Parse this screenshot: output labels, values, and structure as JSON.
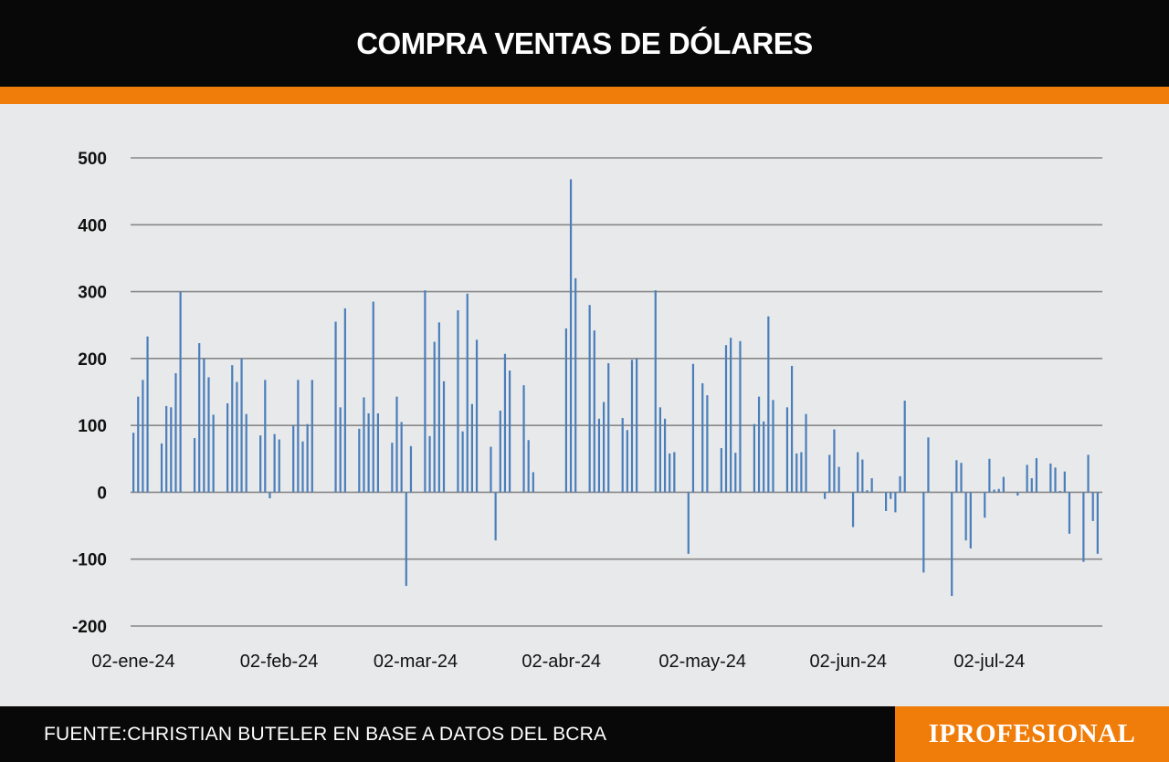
{
  "header": {
    "title": "COMPRA VENTAS DE DÓLARES"
  },
  "footer": {
    "source": "FUENTE:CHRISTIAN BUTELER EN BASE A DATOS DEL BCRA",
    "logo": "IPROFESIONAL"
  },
  "colors": {
    "bar": "#4a7ebb",
    "accent": "#f07d0a",
    "header_bg": "#080808",
    "grid": "#888888"
  },
  "chart_data": {
    "type": "bar",
    "title": "COMPRA VENTAS DE DÓLARES",
    "xlabel": "",
    "ylabel": "",
    "ylim": [
      -200,
      500
    ],
    "yticks": [
      500,
      400,
      300,
      200,
      100,
      0,
      -100,
      -200
    ],
    "xticks": [
      "02-ene-24",
      "02-feb-24",
      "02-mar-24",
      "02-abr-24",
      "02-may-24",
      "02-jun-24",
      "02-jul-24"
    ],
    "grid": true,
    "legend": "none",
    "series": [
      {
        "values": [
          {
            "x": "2024-01-02",
            "y": 89
          },
          {
            "x": "2024-01-03",
            "y": 143
          },
          {
            "x": "2024-01-04",
            "y": 168
          },
          {
            "x": "2024-01-05",
            "y": 233
          },
          {
            "x": "2024-01-08",
            "y": 73
          },
          {
            "x": "2024-01-09",
            "y": 129
          },
          {
            "x": "2024-01-10",
            "y": 127
          },
          {
            "x": "2024-01-11",
            "y": 178
          },
          {
            "x": "2024-01-12",
            "y": 300
          },
          {
            "x": "2024-01-15",
            "y": 81
          },
          {
            "x": "2024-01-16",
            "y": 223
          },
          {
            "x": "2024-01-17",
            "y": 200
          },
          {
            "x": "2024-01-18",
            "y": 172
          },
          {
            "x": "2024-01-19",
            "y": 116
          },
          {
            "x": "2024-01-22",
            "y": 133
          },
          {
            "x": "2024-01-23",
            "y": 190
          },
          {
            "x": "2024-01-24",
            "y": 165
          },
          {
            "x": "2024-01-25",
            "y": 200
          },
          {
            "x": "2024-01-26",
            "y": 117
          },
          {
            "x": "2024-01-29",
            "y": 85
          },
          {
            "x": "2024-01-30",
            "y": 168
          },
          {
            "x": "2024-01-31",
            "y": -9
          },
          {
            "x": "2024-02-01",
            "y": 87
          },
          {
            "x": "2024-02-02",
            "y": 79
          },
          {
            "x": "2024-02-05",
            "y": 100
          },
          {
            "x": "2024-02-06",
            "y": 168
          },
          {
            "x": "2024-02-07",
            "y": 76
          },
          {
            "x": "2024-02-08",
            "y": 102
          },
          {
            "x": "2024-02-09",
            "y": 168
          },
          {
            "x": "2024-02-14",
            "y": 255
          },
          {
            "x": "2024-02-15",
            "y": 127
          },
          {
            "x": "2024-02-16",
            "y": 275
          },
          {
            "x": "2024-02-19",
            "y": 95
          },
          {
            "x": "2024-02-20",
            "y": 142
          },
          {
            "x": "2024-02-21",
            "y": 118
          },
          {
            "x": "2024-02-22",
            "y": 285
          },
          {
            "x": "2024-02-23",
            "y": 118
          },
          {
            "x": "2024-02-26",
            "y": 74
          },
          {
            "x": "2024-02-27",
            "y": 143
          },
          {
            "x": "2024-02-28",
            "y": 105
          },
          {
            "x": "2024-02-29",
            "y": -140
          },
          {
            "x": "2024-03-01",
            "y": 69
          },
          {
            "x": "2024-03-04",
            "y": 302
          },
          {
            "x": "2024-03-05",
            "y": 84
          },
          {
            "x": "2024-03-06",
            "y": 225
          },
          {
            "x": "2024-03-07",
            "y": 254
          },
          {
            "x": "2024-03-08",
            "y": 166
          },
          {
            "x": "2024-03-11",
            "y": 272
          },
          {
            "x": "2024-03-12",
            "y": 91
          },
          {
            "x": "2024-03-13",
            "y": 297
          },
          {
            "x": "2024-03-14",
            "y": 132
          },
          {
            "x": "2024-03-15",
            "y": 228
          },
          {
            "x": "2024-03-18",
            "y": 68
          },
          {
            "x": "2024-03-19",
            "y": -72
          },
          {
            "x": "2024-03-20",
            "y": 122
          },
          {
            "x": "2024-03-21",
            "y": 207
          },
          {
            "x": "2024-03-22",
            "y": 182
          },
          {
            "x": "2024-03-25",
            "y": 160
          },
          {
            "x": "2024-03-26",
            "y": 78
          },
          {
            "x": "2024-03-27",
            "y": 30
          },
          {
            "x": "2024-04-03",
            "y": 245
          },
          {
            "x": "2024-04-04",
            "y": 468
          },
          {
            "x": "2024-04-05",
            "y": 320
          },
          {
            "x": "2024-04-08",
            "y": 280
          },
          {
            "x": "2024-04-09",
            "y": 242
          },
          {
            "x": "2024-04-10",
            "y": 110
          },
          {
            "x": "2024-04-11",
            "y": 135
          },
          {
            "x": "2024-04-12",
            "y": 193
          },
          {
            "x": "2024-04-15",
            "y": 111
          },
          {
            "x": "2024-04-16",
            "y": 93
          },
          {
            "x": "2024-04-17",
            "y": 198
          },
          {
            "x": "2024-04-18",
            "y": 200
          },
          {
            "x": "2024-04-22",
            "y": 302
          },
          {
            "x": "2024-04-23",
            "y": 127
          },
          {
            "x": "2024-04-24",
            "y": 110
          },
          {
            "x": "2024-04-25",
            "y": 58
          },
          {
            "x": "2024-04-26",
            "y": 60
          },
          {
            "x": "2024-04-29",
            "y": -92
          },
          {
            "x": "2024-04-30",
            "y": 192
          },
          {
            "x": "2024-05-02",
            "y": 163
          },
          {
            "x": "2024-05-03",
            "y": 145
          },
          {
            "x": "2024-05-06",
            "y": 66
          },
          {
            "x": "2024-05-07",
            "y": 220
          },
          {
            "x": "2024-05-08",
            "y": 231
          },
          {
            "x": "2024-05-09",
            "y": 59
          },
          {
            "x": "2024-05-10",
            "y": 226
          },
          {
            "x": "2024-05-13",
            "y": 102
          },
          {
            "x": "2024-05-14",
            "y": 143
          },
          {
            "x": "2024-05-15",
            "y": 106
          },
          {
            "x": "2024-05-16",
            "y": 263
          },
          {
            "x": "2024-05-17",
            "y": 138
          },
          {
            "x": "2024-05-20",
            "y": 127
          },
          {
            "x": "2024-05-21",
            "y": 189
          },
          {
            "x": "2024-05-22",
            "y": 58
          },
          {
            "x": "2024-05-23",
            "y": 60
          },
          {
            "x": "2024-05-24",
            "y": 117
          },
          {
            "x": "2024-05-28",
            "y": -10
          },
          {
            "x": "2024-05-29",
            "y": 56
          },
          {
            "x": "2024-05-30",
            "y": 94
          },
          {
            "x": "2024-05-31",
            "y": 38
          },
          {
            "x": "2024-06-03",
            "y": -52
          },
          {
            "x": "2024-06-04",
            "y": 60
          },
          {
            "x": "2024-06-05",
            "y": 49
          },
          {
            "x": "2024-06-06",
            "y": 3
          },
          {
            "x": "2024-06-07",
            "y": 21
          },
          {
            "x": "2024-06-10",
            "y": -28
          },
          {
            "x": "2024-06-11",
            "y": -10
          },
          {
            "x": "2024-06-12",
            "y": -30
          },
          {
            "x": "2024-06-13",
            "y": 24
          },
          {
            "x": "2024-06-14",
            "y": 137
          },
          {
            "x": "2024-06-18",
            "y": -120
          },
          {
            "x": "2024-06-19",
            "y": 82
          },
          {
            "x": "2024-06-24",
            "y": -155
          },
          {
            "x": "2024-06-25",
            "y": 48
          },
          {
            "x": "2024-06-26",
            "y": 44
          },
          {
            "x": "2024-06-27",
            "y": -72
          },
          {
            "x": "2024-06-28",
            "y": -84
          },
          {
            "x": "2024-07-01",
            "y": -38
          },
          {
            "x": "2024-07-02",
            "y": 50
          },
          {
            "x": "2024-07-03",
            "y": 4
          },
          {
            "x": "2024-07-04",
            "y": 5
          },
          {
            "x": "2024-07-05",
            "y": 23
          },
          {
            "x": "2024-07-08",
            "y": -5
          },
          {
            "x": "2024-07-10",
            "y": 41
          },
          {
            "x": "2024-07-11",
            "y": 21
          },
          {
            "x": "2024-07-12",
            "y": 51
          },
          {
            "x": "2024-07-15",
            "y": 43
          },
          {
            "x": "2024-07-16",
            "y": 37
          },
          {
            "x": "2024-07-17",
            "y": 2
          },
          {
            "x": "2024-07-18",
            "y": 31
          },
          {
            "x": "2024-07-19",
            "y": -62
          },
          {
            "x": "2024-07-22",
            "y": -104
          },
          {
            "x": "2024-07-23",
            "y": 56
          },
          {
            "x": "2024-07-24",
            "y": -43
          },
          {
            "x": "2024-07-25",
            "y": -92
          }
        ]
      }
    ]
  }
}
